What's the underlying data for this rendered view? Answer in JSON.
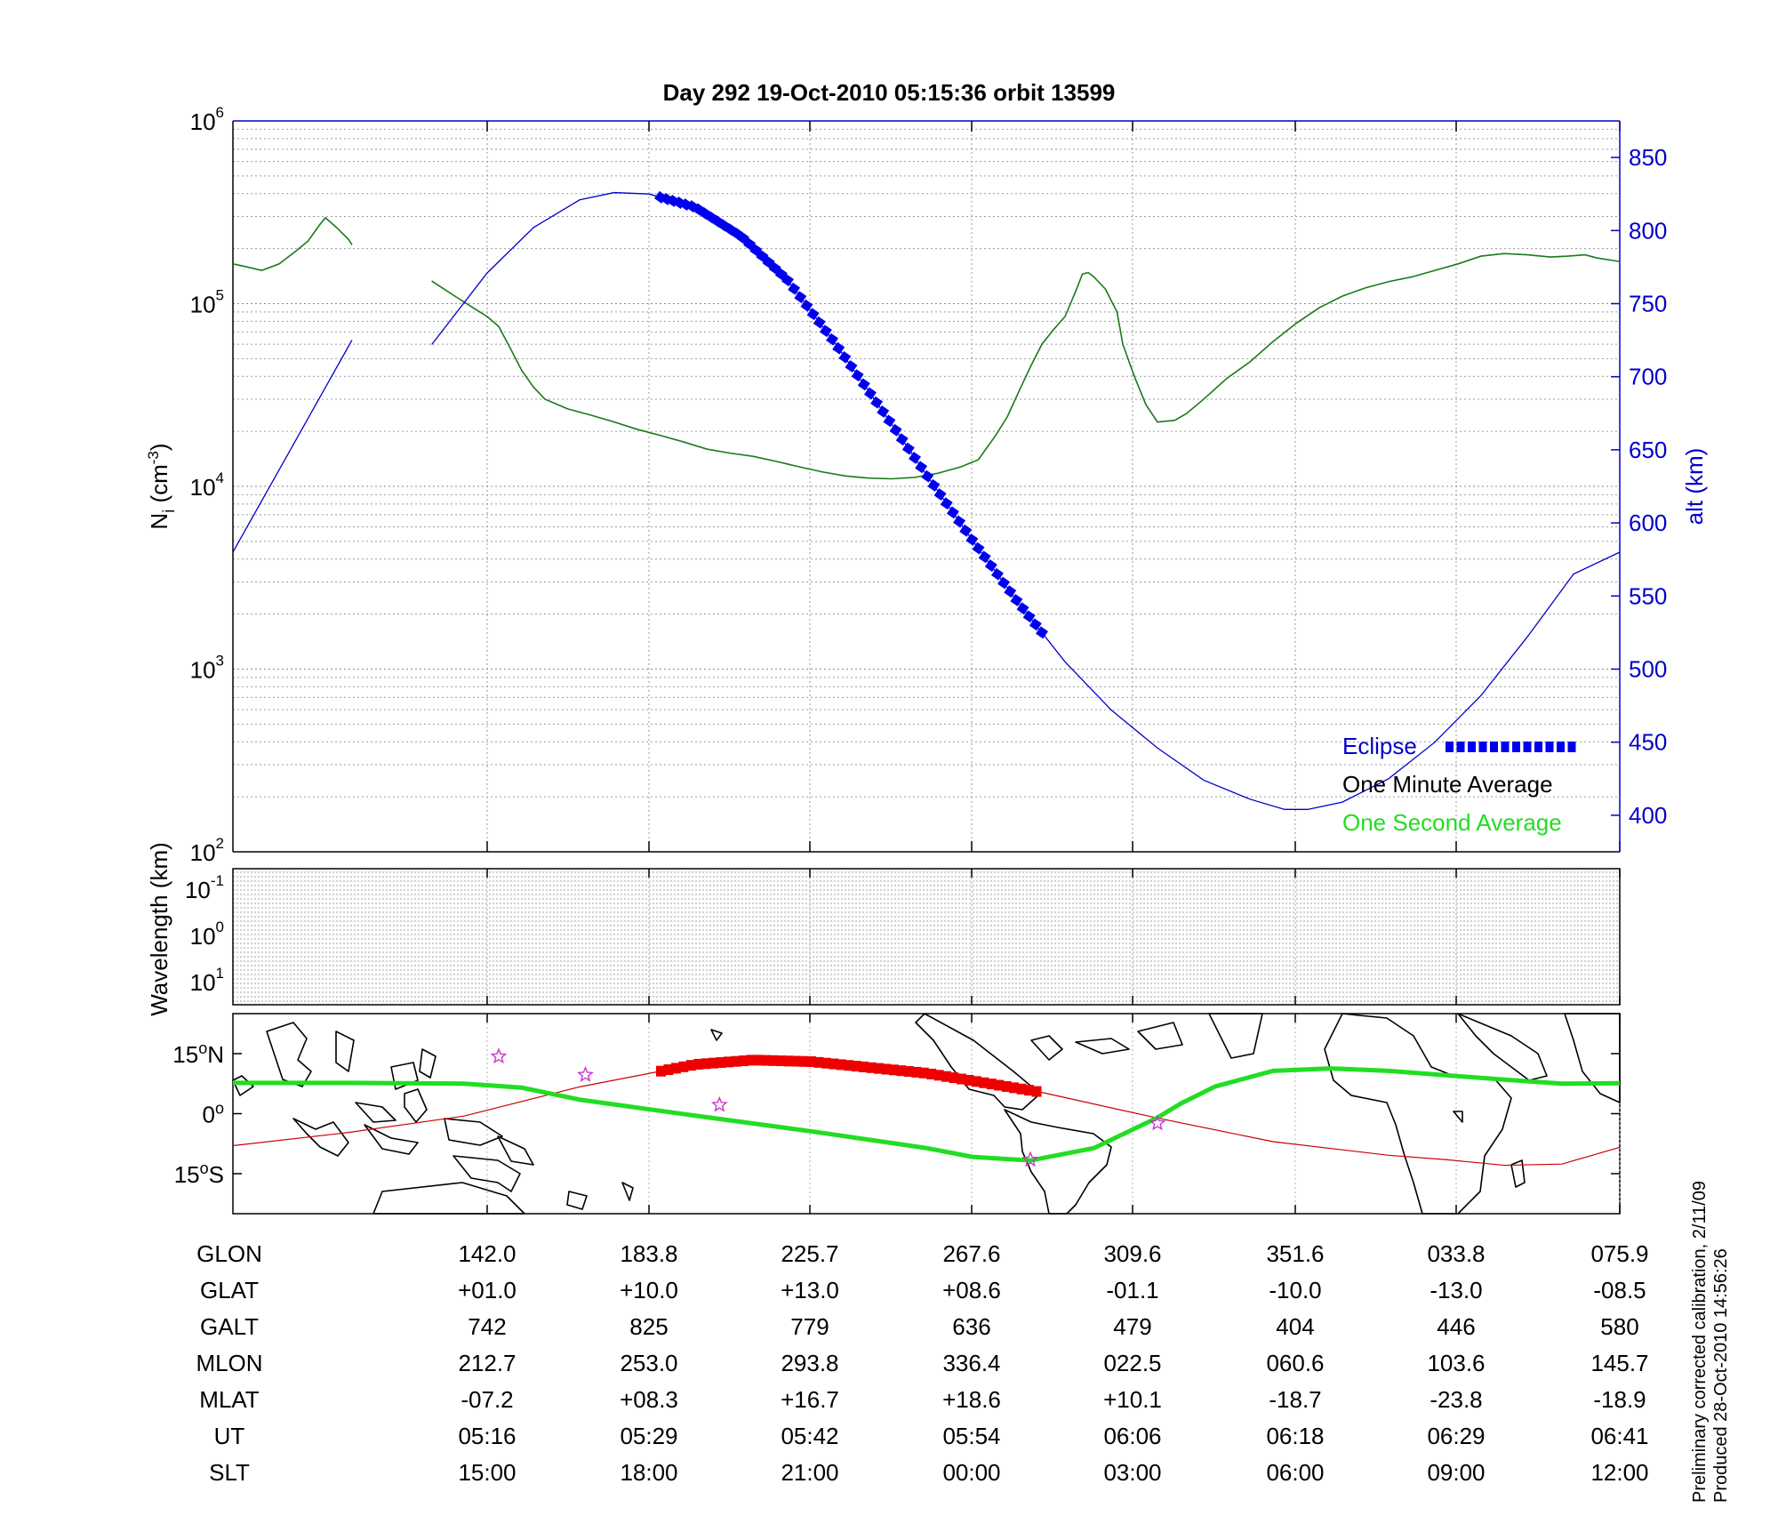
{
  "title": "Day 292  19-Oct-2010 05:15:36   orbit 13599",
  "footnote": {
    "line1": "Preliminary corrected calibration, 2/11/09",
    "line2": "Produced 28-Oct-2010 14:56:26"
  },
  "colors": {
    "density": "#1a7a1a",
    "altitude": "#0000cc",
    "eclipse": "#0000ee",
    "track": "#cc0000",
    "eclipse_track": "#ee0000",
    "magnetic_equator": "#22dd22",
    "stars": "#cc33cc",
    "legend_one_second": "#22dd22"
  },
  "chart_data": [
    {
      "type": "line",
      "panel": "ion-density",
      "ylabel_main": "N",
      "ylabel_sub": "i",
      "ylabel_unit_pre": " (cm",
      "ylabel_unit_sup": "-3",
      "ylabel_unit_post": ")",
      "y_scale": "log",
      "ylim": [
        100,
        1000000
      ],
      "y_ticks": [
        {
          "base": "10",
          "exp": "2",
          "value": 100
        },
        {
          "base": "10",
          "exp": "3",
          "value": 1000
        },
        {
          "base": "10",
          "exp": "4",
          "value": 10000
        },
        {
          "base": "10",
          "exp": "5",
          "value": 100000
        },
        {
          "base": "10",
          "exp": "6",
          "value": 1000000
        }
      ],
      "y2label": "alt (km)",
      "y2lim": [
        375,
        875
      ],
      "y2_ticks": [
        "400",
        "450",
        "500",
        "550",
        "600",
        "650",
        "700",
        "750",
        "800",
        "850"
      ],
      "x_ticks_ut": [
        "05:16",
        "05:29",
        "05:42",
        "05:54",
        "06:06",
        "06:18",
        "06:29",
        "06:41"
      ],
      "grid": true,
      "legend": {
        "placement": "bottom-right",
        "entries": [
          "Eclipse",
          "One Minute Average",
          "One Second Average"
        ]
      },
      "series": [
        {
          "role": "ion density",
          "segments": [
            [
              [
                0,
                165000
              ],
              [
                0.01,
                160000
              ],
              [
                0.025,
                152000
              ],
              [
                0.04,
                165000
              ],
              [
                0.055,
                195000
              ],
              [
                0.065,
                220000
              ],
              [
                0.075,
                270000
              ],
              [
                0.08,
                295000
              ],
              [
                0.09,
                260000
              ],
              [
                0.1,
                225000
              ],
              [
                0.103,
                210000
              ]
            ],
            [
              [
                0.172,
                133000
              ],
              [
                0.19,
                112000
              ],
              [
                0.21,
                93000
              ],
              [
                0.22,
                85000
              ],
              [
                0.23,
                75000
              ],
              [
                0.24,
                57000
              ],
              [
                0.25,
                43000
              ],
              [
                0.26,
                35000
              ],
              [
                0.27,
                30000
              ],
              [
                0.29,
                26500
              ],
              [
                0.31,
                24500
              ],
              [
                0.33,
                22500
              ],
              [
                0.35,
                20500
              ],
              [
                0.37,
                19000
              ],
              [
                0.39,
                17500
              ],
              [
                0.41,
                16000
              ],
              [
                0.43,
                15200
              ],
              [
                0.45,
                14600
              ],
              [
                0.47,
                13700
              ],
              [
                0.49,
                12800
              ],
              [
                0.51,
                12000
              ],
              [
                0.53,
                11400
              ],
              [
                0.55,
                11100
              ],
              [
                0.57,
                11000
              ],
              [
                0.59,
                11200
              ],
              [
                0.61,
                11800
              ],
              [
                0.63,
                12800
              ],
              [
                0.645,
                14000
              ],
              [
                0.65,
                15500
              ],
              [
                0.66,
                19000
              ],
              [
                0.67,
                24000
              ],
              [
                0.68,
                33000
              ],
              [
                0.69,
                45000
              ],
              [
                0.7,
                60000
              ],
              [
                0.71,
                72000
              ],
              [
                0.72,
                85000
              ],
              [
                0.73,
                120000
              ],
              [
                0.735,
                145000
              ],
              [
                0.74,
                148000
              ],
              [
                0.745,
                140000
              ],
              [
                0.755,
                120000
              ],
              [
                0.765,
                90000
              ],
              [
                0.77,
                60000
              ],
              [
                0.78,
                40000
              ],
              [
                0.79,
                28000
              ],
              [
                0.8,
                22500
              ],
              [
                0.815,
                23000
              ],
              [
                0.825,
                25000
              ],
              [
                0.84,
                30000
              ],
              [
                0.86,
                39000
              ],
              [
                0.88,
                48000
              ],
              [
                0.9,
                62000
              ],
              [
                0.92,
                78000
              ],
              [
                0.94,
                95000
              ],
              [
                0.96,
                110000
              ],
              [
                0.98,
                122000
              ],
              [
                1.0,
                132000
              ],
              [
                1.02,
                140000
              ],
              [
                1.04,
                152000
              ],
              [
                1.06,
                165000
              ],
              [
                1.08,
                182000
              ],
              [
                1.1,
                188000
              ],
              [
                1.12,
                185000
              ],
              [
                1.14,
                180000
              ],
              [
                1.155,
                182000
              ],
              [
                1.17,
                185000
              ],
              [
                1.18,
                178000
              ],
              [
                1.2,
                170000
              ]
            ]
          ]
        },
        {
          "role": "altitude (km)",
          "segments": [
            [
              [
                0,
                580
              ],
              [
                0.103,
                725
              ]
            ],
            [
              [
                0.172,
                722
              ],
              [
                0.22,
                771
              ],
              [
                0.26,
                802
              ],
              [
                0.3,
                821
              ],
              [
                0.33,
                826
              ],
              [
                0.36,
                825
              ],
              [
                0.4,
                816
              ],
              [
                0.44,
                796
              ],
              [
                0.48,
                766
              ],
              [
                0.52,
                724
              ],
              [
                0.56,
                679
              ],
              [
                0.6,
                633
              ],
              [
                0.64,
                588
              ],
              [
                0.68,
                545
              ],
              [
                0.72,
                505
              ],
              [
                0.76,
                472
              ],
              [
                0.8,
                446
              ],
              [
                0.84,
                424
              ],
              [
                0.88,
                411
              ],
              [
                0.91,
                404
              ],
              [
                0.93,
                404
              ],
              [
                0.96,
                409
              ],
              [
                1.0,
                425
              ],
              [
                1.04,
                450
              ],
              [
                1.08,
                482
              ],
              [
                1.12,
                522
              ],
              [
                1.16,
                565
              ],
              [
                1.2,
                580
              ]
            ]
          ]
        },
        {
          "role": "eclipse",
          "range": [
            0.37,
            0.7
          ]
        }
      ]
    },
    {
      "type": "heatmap",
      "panel": "wavelength",
      "ylabel": "Wavelength (km)",
      "y_ticks": [
        {
          "base": "10",
          "exp": "-1"
        },
        {
          "base": "10",
          "exp": "0"
        },
        {
          "base": "10",
          "exp": "1"
        }
      ],
      "values": []
    },
    {
      "type": "line",
      "panel": "map",
      "y_ticks": [
        {
          "deg": "15",
          "sign": "N",
          "value": 15
        },
        {
          "deg": "0",
          "sign": "",
          "value": 0
        },
        {
          "deg": "15",
          "sign": "S",
          "value": -15
        }
      ],
      "ylim": [
        -25,
        25
      ],
      "series": [
        {
          "role": "ground track latitude",
          "points": [
            [
              0,
              -8
            ],
            [
              0.1,
              -4.7
            ],
            [
              0.2,
              -0.6
            ],
            [
              0.3,
              6.7
            ],
            [
              0.4,
              12.3
            ],
            [
              0.45,
              13.4
            ],
            [
              0.5,
              13.0
            ],
            [
              0.6,
              10.1
            ],
            [
              0.7,
              5.3
            ],
            [
              0.8,
              -1.1
            ],
            [
              0.9,
              -7.0
            ],
            [
              1.0,
              -10.4
            ],
            [
              1.05,
              -11.5
            ],
            [
              1.1,
              -12.9
            ],
            [
              1.15,
              -12.6
            ],
            [
              1.2,
              -8.4
            ]
          ]
        },
        {
          "role": "eclipse track",
          "range": [
            0.37,
            0.7
          ]
        },
        {
          "role": "magnetic equator",
          "points": [
            [
              0,
              7.7
            ],
            [
              0.1,
              7.7
            ],
            [
              0.2,
              7.5
            ],
            [
              0.25,
              6.5
            ],
            [
              0.3,
              3.5
            ],
            [
              0.4,
              -0.5
            ],
            [
              0.5,
              -4.4
            ],
            [
              0.6,
              -8.6
            ],
            [
              0.64,
              -10.8
            ],
            [
              0.69,
              -11.7
            ],
            [
              0.745,
              -8.6
            ],
            [
              0.8,
              -1.0
            ],
            [
              0.82,
              2.5
            ],
            [
              0.85,
              6.8
            ],
            [
              0.9,
              10.7
            ],
            [
              0.95,
              11.3
            ],
            [
              1.0,
              10.7
            ],
            [
              1.1,
              8.5
            ],
            [
              1.15,
              7.5
            ],
            [
              1.2,
              7.6
            ]
          ]
        },
        {
          "role": "star markers",
          "points": [
            [
              0.23,
              14.3
            ],
            [
              0.305,
              9.7
            ],
            [
              0.421,
              2.2
            ],
            [
              0.69,
              -11.5
            ],
            [
              0.8,
              -2.4
            ]
          ]
        }
      ]
    }
  ],
  "table": {
    "rows": [
      {
        "label": "GLON",
        "values": [
          "142.0",
          "183.8",
          "225.7",
          "267.6",
          "309.6",
          "351.6",
          "033.8",
          "075.9"
        ]
      },
      {
        "label": "GLAT",
        "values": [
          "+01.0",
          "+10.0",
          "+13.0",
          "+08.6",
          "-01.1",
          "-10.0",
          "-13.0",
          "-08.5"
        ]
      },
      {
        "label": "GALT",
        "values": [
          "742",
          "825",
          "779",
          "636",
          "479",
          "404",
          "446",
          "580"
        ]
      },
      {
        "label": "MLON",
        "values": [
          "212.7",
          "253.0",
          "293.8",
          "336.4",
          "022.5",
          "060.6",
          "103.6",
          "145.7"
        ]
      },
      {
        "label": "MLAT",
        "values": [
          "-07.2",
          "+08.3",
          "+16.7",
          "+18.6",
          "+10.1",
          "-18.7",
          "-23.8",
          "-18.9"
        ]
      },
      {
        "label": "UT",
        "values": [
          "05:16",
          "05:29",
          "05:42",
          "05:54",
          "06:06",
          "06:18",
          "06:29",
          "06:41"
        ]
      },
      {
        "label": "SLT",
        "values": [
          "15:00",
          "18:00",
          "21:00",
          "00:00",
          "03:00",
          "06:00",
          "09:00",
          "12:00"
        ]
      }
    ]
  }
}
